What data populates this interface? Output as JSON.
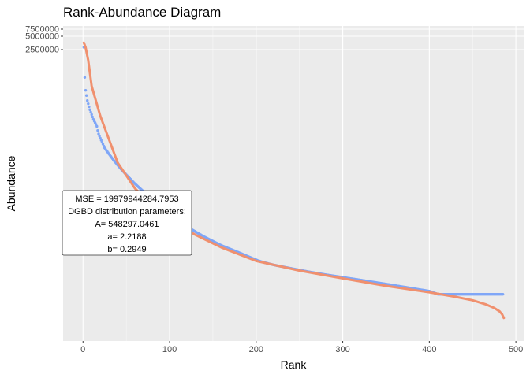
{
  "chart_data": {
    "type": "scatter",
    "title": "Rank-Abundance Diagram",
    "xlabel": "Rank",
    "ylabel": "Abundance",
    "x_ticks": [
      0,
      100,
      200,
      300,
      400,
      500
    ],
    "y_ticks": [
      2500000,
      5000000,
      7500000
    ],
    "x_range": [
      -23,
      509
    ],
    "grid": true,
    "series": [
      {
        "kind": "points",
        "color": "#7fa6f7",
        "points": [
          [
            1,
            2880000
          ],
          [
            2,
            2140000
          ],
          [
            3,
            1960000
          ],
          [
            5,
            1820000
          ],
          [
            8,
            1700000
          ],
          [
            12,
            1580000
          ],
          [
            18,
            1460000
          ],
          [
            25,
            1370000
          ],
          [
            35,
            1290000
          ],
          [
            45,
            1220000
          ],
          [
            60,
            1130000
          ],
          [
            80,
            1030000
          ],
          [
            100,
            940000
          ],
          [
            120,
            870000
          ],
          [
            140,
            815000
          ],
          [
            160,
            770000
          ],
          [
            180,
            735000
          ],
          [
            200,
            700000
          ],
          [
            220,
            670000
          ],
          [
            240,
            645000
          ],
          [
            260,
            620000
          ],
          [
            280,
            598000
          ],
          [
            300,
            578000
          ],
          [
            320,
            558000
          ],
          [
            340,
            538000
          ],
          [
            360,
            518000
          ],
          [
            380,
            498000
          ],
          [
            400,
            478000
          ],
          [
            410,
            457000
          ],
          [
            430,
            457000
          ],
          [
            450,
            457000
          ],
          [
            470,
            457000
          ],
          [
            485,
            457000
          ]
        ]
      },
      {
        "kind": "fit-curve",
        "color": "#f0906e",
        "points": [
          [
            1,
            3730000
          ],
          [
            3,
            2880000
          ],
          [
            6,
            2380000
          ],
          [
            10,
            2020000
          ],
          [
            20,
            1620000
          ],
          [
            40,
            1270000
          ],
          [
            60,
            1100000
          ],
          [
            80,
            990000
          ],
          [
            100,
            910000
          ],
          [
            130,
            825000
          ],
          [
            160,
            760000
          ],
          [
            200,
            695000
          ],
          [
            250,
            628000
          ],
          [
            300,
            570000
          ],
          [
            350,
            515000
          ],
          [
            400,
            470000
          ],
          [
            430,
            440000
          ],
          [
            450,
            418000
          ],
          [
            465,
            395000
          ],
          [
            475,
            372000
          ],
          [
            481,
            350000
          ],
          [
            484,
            330000
          ],
          [
            486,
            305000
          ]
        ]
      }
    ]
  },
  "annotation": {
    "lines": [
      "MSE = 19979944284.7953",
      "DGBD distribution parameters:",
      "A= 548297.0461",
      "a= 2.2188",
      "b= 0.2949"
    ]
  },
  "colors": {
    "panel_background": "#ebebeb",
    "grid_major": "#ffffff",
    "points": "#7fa6f7",
    "fit_curve": "#f0906e"
  }
}
